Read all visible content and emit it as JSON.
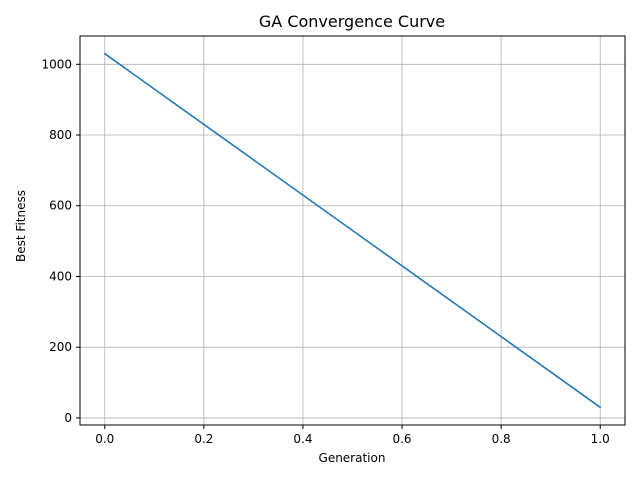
{
  "chart_data": {
    "type": "line",
    "title": "GA Convergence Curve",
    "xlabel": "Generation",
    "ylabel": "Best Fitness",
    "xlim": [
      -0.05,
      1.05
    ],
    "ylim": [
      -20,
      1080
    ],
    "grid": true,
    "x_ticks": [
      0.0,
      0.2,
      0.4,
      0.6,
      0.8,
      1.0
    ],
    "x_tick_labels": [
      "0.0",
      "0.2",
      "0.4",
      "0.6",
      "0.8",
      "1.0"
    ],
    "y_ticks": [
      0,
      200,
      400,
      600,
      800,
      1000
    ],
    "y_tick_labels": [
      "0",
      "200",
      "400",
      "600",
      "800",
      "1000"
    ],
    "series": [
      {
        "color": "#1f77b4",
        "x": [
          0.0,
          1.0
        ],
        "y": [
          1030,
          30
        ]
      }
    ]
  }
}
